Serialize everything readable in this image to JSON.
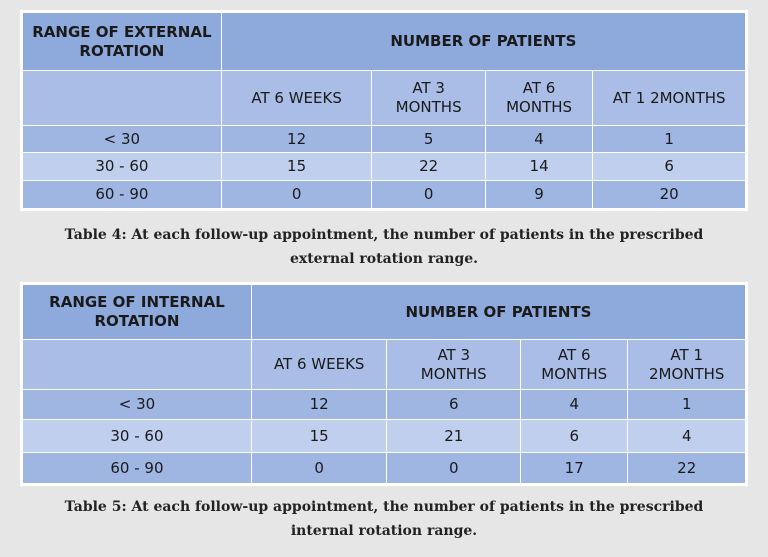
{
  "tables": [
    {
      "header": {
        "row_label": "RANGE OF EXTERNAL\nROTATION",
        "group_label": "NUMBER OF PATIENTS",
        "columns": [
          "AT 6 WEEKS",
          "AT 3\nMONTHS",
          "AT 6\nMONTHS",
          "AT 1 2MONTHS"
        ]
      },
      "rows": [
        [
          "< 30",
          12,
          5,
          4,
          1
        ],
        [
          "30 - 60",
          15,
          22,
          14,
          6
        ],
        [
          "60 - 90",
          0,
          0,
          9,
          20
        ]
      ],
      "caption": "Table 4: At each follow-up appointment, the number of patients in the prescribed\nexternal rotation range."
    },
    {
      "header": {
        "row_label": "RANGE OF INTERNAL\nROTATION",
        "group_label": "NUMBER OF PATIENTS",
        "columns": [
          "AT 6 WEEKS",
          "AT 3\nMONTHS",
          "AT 6\nMONTHS",
          "AT 1\n2MONTHS"
        ]
      },
      "rows": [
        [
          "< 30",
          12,
          6,
          4,
          1
        ],
        [
          "30 - 60",
          15,
          21,
          6,
          4
        ],
        [
          "60 - 90",
          0,
          0,
          17,
          22
        ]
      ],
      "caption": "Table 5: At each follow-up appointment, the number of patients in the prescribed\ninternal rotation range."
    }
  ]
}
